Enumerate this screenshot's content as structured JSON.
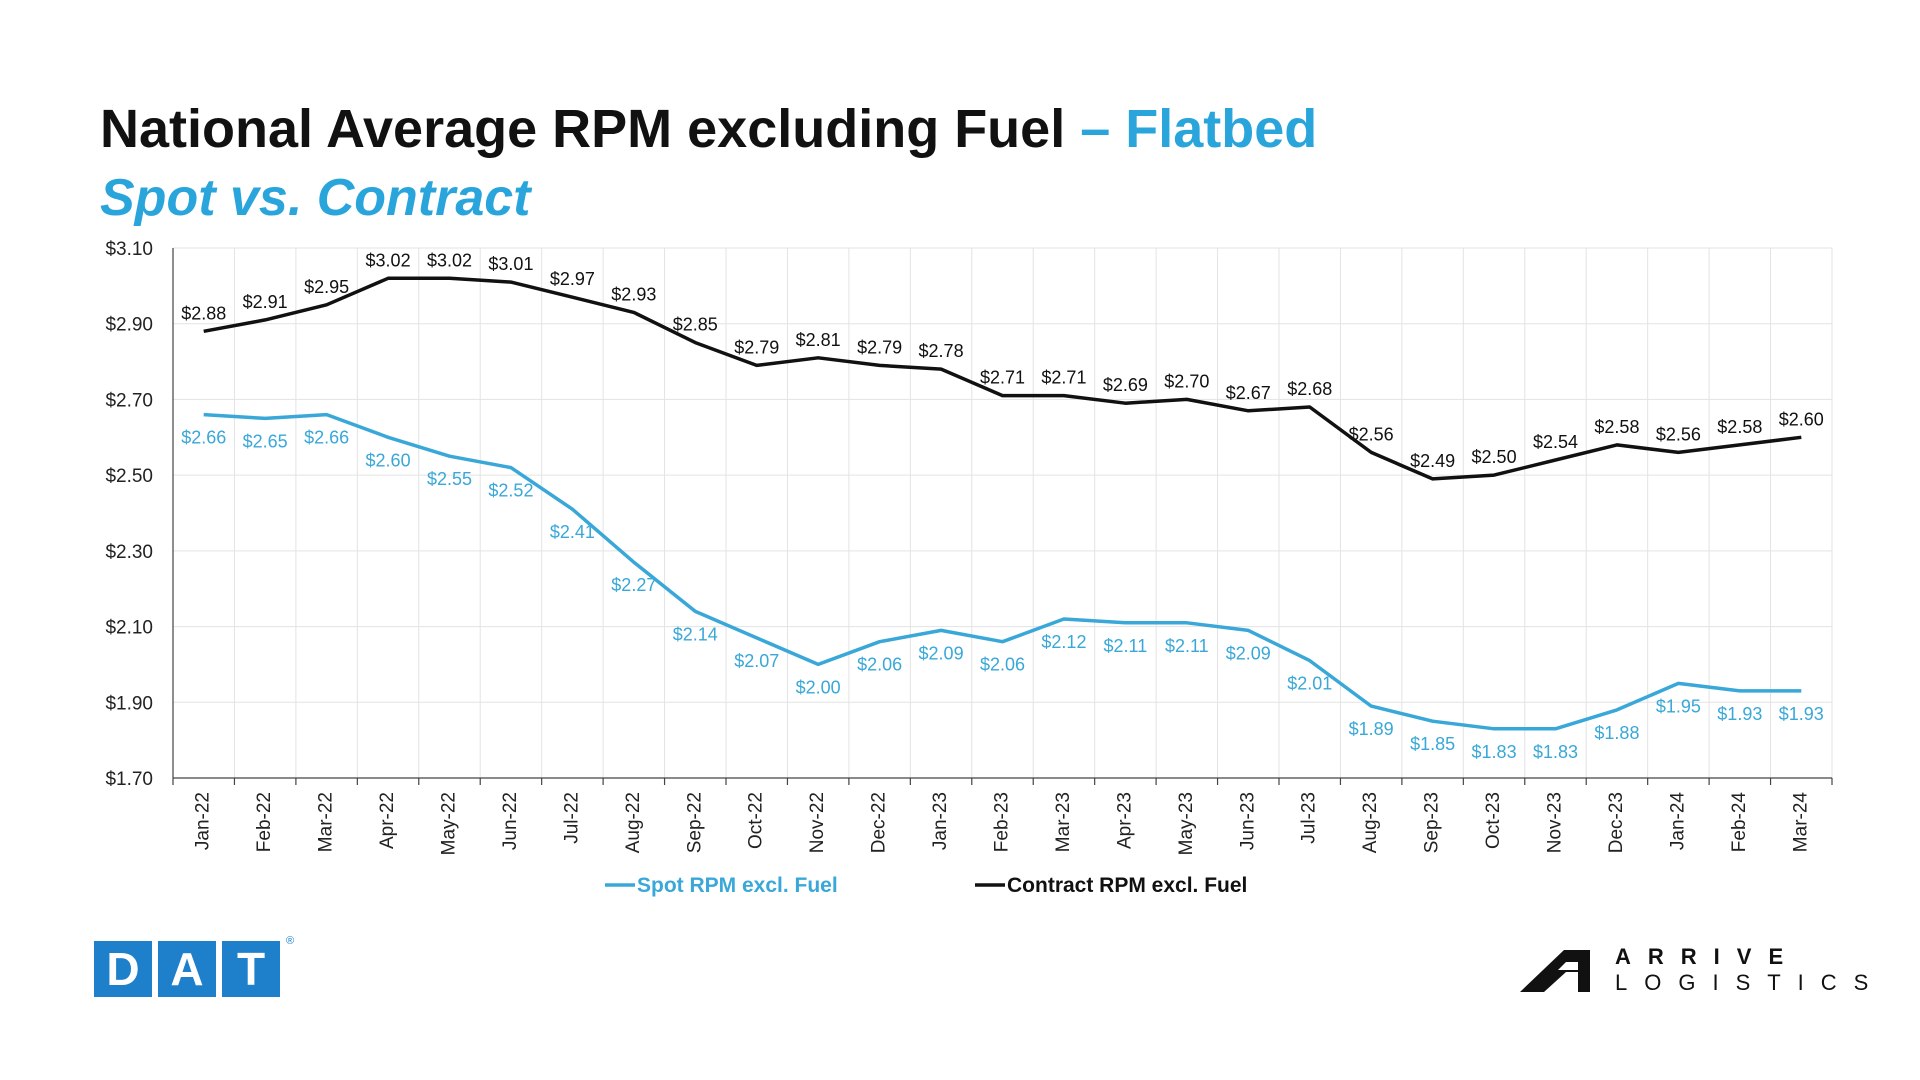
{
  "header": {
    "title_main": "National Average RPM excluding Fuel",
    "title_accent": "– Flatbed",
    "subtitle": "Spot vs. Contract"
  },
  "colors": {
    "spot": "#39a8d8",
    "contract": "#111111",
    "accent": "#29a5dc",
    "dat_blue": "#1e7fcb"
  },
  "chart_data": {
    "type": "line",
    "title": "National Average RPM excluding Fuel – Flatbed",
    "subtitle": "Spot vs. Contract",
    "xlabel": "",
    "ylabel": "",
    "categories": [
      "Jan-22",
      "Feb-22",
      "Mar-22",
      "Apr-22",
      "May-22",
      "Jun-22",
      "Jul-22",
      "Aug-22",
      "Sep-22",
      "Oct-22",
      "Nov-22",
      "Dec-22",
      "Jan-23",
      "Feb-23",
      "Mar-23",
      "Apr-23",
      "May-23",
      "Jun-23",
      "Jul-23",
      "Aug-23",
      "Sep-23",
      "Oct-23",
      "Nov-23",
      "Dec-23",
      "Jan-24",
      "Feb-24",
      "Mar-24"
    ],
    "ylim": [
      1.7,
      3.1
    ],
    "yticks": [
      1.7,
      1.9,
      2.1,
      2.3,
      2.5,
      2.7,
      2.9,
      3.1
    ],
    "ytick_labels": [
      "$1.70",
      "$1.90",
      "$2.10",
      "$2.30",
      "$2.50",
      "$2.70",
      "$2.90",
      "$3.10"
    ],
    "grid": true,
    "legend_position": "bottom",
    "series": [
      {
        "name": "Spot RPM excl. Fuel",
        "color": "#39a8d8",
        "values": [
          2.66,
          2.65,
          2.66,
          2.6,
          2.55,
          2.52,
          2.41,
          2.27,
          2.14,
          2.07,
          2.0,
          2.06,
          2.09,
          2.06,
          2.12,
          2.11,
          2.11,
          2.09,
          2.01,
          1.89,
          1.85,
          1.83,
          1.83,
          1.88,
          1.95,
          1.93,
          1.93
        ],
        "labels": [
          "$2.66",
          "$2.65",
          "$2.66",
          "$2.60",
          "$2.55",
          "$2.52",
          "$2.41",
          "$2.27",
          "$2.14",
          "$2.07",
          "$2.00",
          "$2.06",
          "$2.09",
          "$2.06",
          "$2.12",
          "$2.11",
          "$2.11",
          "$2.09",
          "$2.01",
          "$1.89",
          "$1.85",
          "$1.83",
          "$1.83",
          "$1.88",
          "$1.95",
          "$1.93",
          "$1.93"
        ]
      },
      {
        "name": "Contract RPM excl. Fuel",
        "color": "#111111",
        "values": [
          2.88,
          2.91,
          2.95,
          3.02,
          3.02,
          3.01,
          2.97,
          2.93,
          2.85,
          2.79,
          2.81,
          2.79,
          2.78,
          2.71,
          2.71,
          2.69,
          2.7,
          2.67,
          2.68,
          2.56,
          2.49,
          2.5,
          2.54,
          2.58,
          2.56,
          2.58,
          2.6
        ],
        "labels": [
          "$2.88",
          "$2.91",
          "$2.95",
          "$3.02",
          "$3.02",
          "$3.01",
          "$2.97",
          "$2.93",
          "$2.85",
          "$2.79",
          "$2.81",
          "$2.79",
          "$2.78",
          "$2.71",
          "$2.71",
          "$2.69",
          "$2.70",
          "$2.67",
          "$2.68",
          "$2.56",
          "$2.49",
          "$2.50",
          "$2.54",
          "$2.58",
          "$2.56",
          "$2.58",
          "$2.60"
        ]
      }
    ]
  },
  "logos": {
    "dat_letters": [
      "D",
      "A",
      "T"
    ],
    "dat_reg": "®",
    "arrive_line1": "ARRIVE",
    "arrive_line2": "LOGISTICS"
  }
}
